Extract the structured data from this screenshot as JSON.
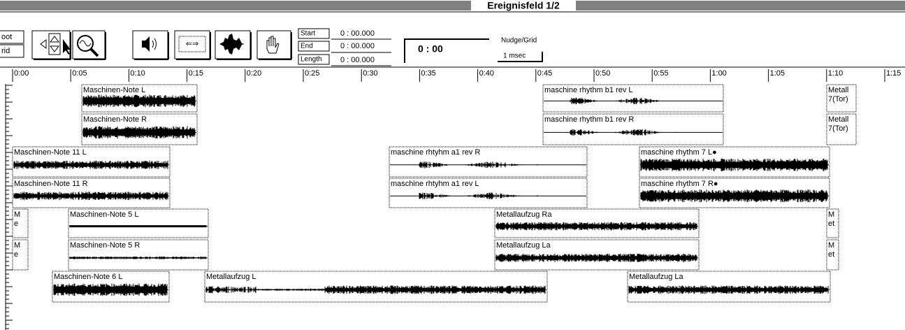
{
  "window": {
    "title": "Ereignisfeld 1/2"
  },
  "toolbar": {
    "mode_buttons": [
      "oot",
      "rid"
    ],
    "start_label": "Start",
    "end_label": "End",
    "length_label": "Length",
    "start": "0 : 00.000",
    "end": "0 : 00.000",
    "length": "0 : 00.000",
    "counter": "0 : 00",
    "nudge_label": "Nudge/Grid",
    "nudge": "1 msec"
  },
  "ruler": {
    "labels": [
      "0:00",
      "0:05",
      "0:10",
      "0:15",
      "0:20",
      "0:25",
      "0:30",
      "0:35",
      "0:40",
      "0:45",
      "0:50",
      "0:55",
      "1:00",
      "1:05",
      "1:10",
      "1:15"
    ]
  },
  "regions": [
    {
      "lines": [
        "Maschinen-Note L"
      ]
    },
    {
      "lines": [
        "maschine rhythm b1 rev L"
      ]
    },
    {
      "lines": [
        "Metall",
        "7(Tor)"
      ]
    },
    {
      "lines": [
        "Maschinen-Note R"
      ]
    },
    {
      "lines": [
        "maschine rhythm b1 rev R"
      ]
    },
    {
      "lines": [
        "Metall",
        "7(Tor)"
      ]
    },
    {
      "lines": [
        "Maschinen-Note 11 L"
      ]
    },
    {
      "lines": [
        "maschine rhtyhm a1 rev R"
      ]
    },
    {
      "lines": [
        "maschine rhythm 7 L●"
      ]
    },
    {
      "lines": [
        "Maschinen-Note 11 R"
      ]
    },
    {
      "lines": [
        "maschine rhtyhm a1 rev L"
      ]
    },
    {
      "lines": [
        "maschine rhythm 7 R●"
      ]
    },
    {
      "lines": [
        "M",
        "e"
      ]
    },
    {
      "lines": [
        "Maschinen-Note 5 L"
      ]
    },
    {
      "lines": [
        "Metallaufzug Ra"
      ]
    },
    {
      "lines": [
        "M",
        "et"
      ]
    },
    {
      "lines": [
        "M",
        "e"
      ]
    },
    {
      "lines": [
        "Maschinen-Note 5 R"
      ]
    },
    {
      "lines": [
        "Metallaufzug La"
      ]
    },
    {
      "lines": [
        "M",
        "et"
      ]
    },
    {
      "lines": [
        "Maschinen-Note 6 L"
      ]
    },
    {
      "lines": [
        "Metallaufzug L"
      ]
    },
    {
      "lines": [
        "Metallaufzug La"
      ]
    }
  ]
}
